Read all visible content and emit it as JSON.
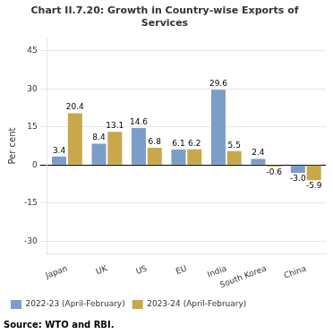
{
  "chart_data": {
    "type": "bar",
    "title": "Chart II.7.20: Growth in Country-wise Exports of\nServices",
    "categories": [
      "Japan",
      "UK",
      "US",
      "EU",
      "India",
      "South Korea",
      "China"
    ],
    "series": [
      {
        "name": "2022-23 (April-February)",
        "color": "#7B9EC9",
        "values": [
          3.4,
          8.4,
          14.6,
          6.1,
          29.6,
          2.4,
          -3.0
        ],
        "value_labels": [
          "3.4",
          "8.4",
          "14.6",
          "6.1",
          "29.6",
          "2.4",
          "-3.0"
        ]
      },
      {
        "name": "2023-24 (April-February)",
        "color": "#C8A84B",
        "values": [
          20.4,
          13.1,
          6.8,
          6.2,
          5.5,
          -0.6,
          -5.9
        ],
        "value_labels": [
          "20.4",
          "13.1",
          "6.8",
          "6.2",
          "5.5",
          "-0.6",
          "-5.9"
        ]
      }
    ],
    "y_label": "Per cent",
    "ylim": [
      -35,
      50
    ],
    "yticks": [
      -30,
      -15,
      0,
      15,
      30,
      45
    ],
    "grid": true,
    "legend": "bottom",
    "data_labels": true,
    "annotations": [
      "Source: WTO and RBI."
    ]
  }
}
